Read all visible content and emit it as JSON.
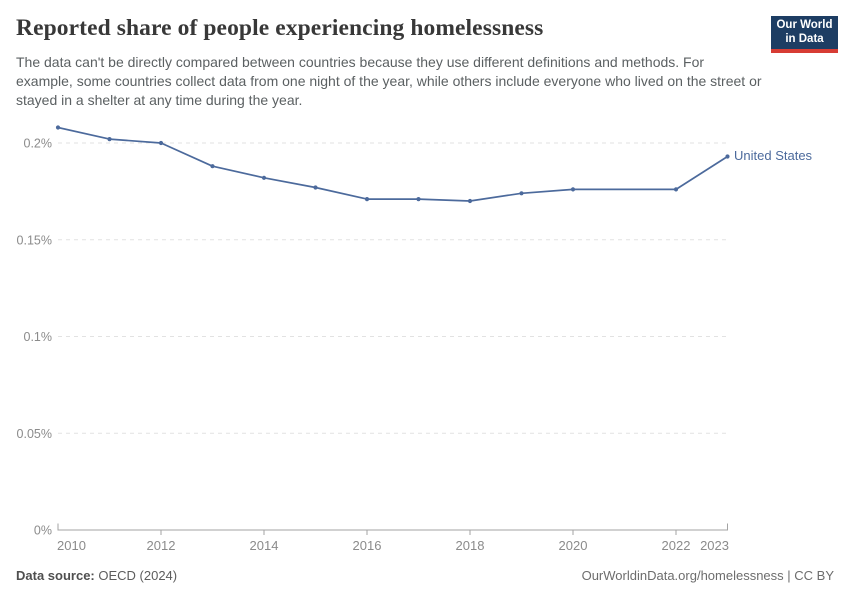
{
  "header": {
    "title": "Reported share of people experiencing homelessness",
    "subtitle": "The data can't be directly compared between countries because they use different definitions and methods. For example, some countries collect data from one night of the year, while others include everyone who lived on the street or stayed in a shelter at any time during the year."
  },
  "logo": {
    "line1": "Our World",
    "line2": "in Data",
    "bg_color": "#1d3d63",
    "accent_color": "#d73c34"
  },
  "chart_data": {
    "type": "line",
    "title": "Reported share of people experiencing homelessness",
    "xlabel": "",
    "ylabel": "",
    "unit": "%",
    "xlim": [
      2010,
      2023
    ],
    "ylim": [
      0,
      0.2
    ],
    "grid": "horizontal-dashed",
    "legend_position": "end-of-line",
    "x": [
      2010,
      2011,
      2012,
      2013,
      2014,
      2015,
      2016,
      2017,
      2018,
      2019,
      2020,
      2022,
      2023
    ],
    "series": [
      {
        "name": "United States",
        "color": "#4C6A9C",
        "values": [
          0.208,
          0.202,
          0.2,
          0.188,
          0.182,
          0.177,
          0.171,
          0.171,
          0.17,
          0.174,
          0.176,
          0.176,
          0.193
        ]
      }
    ],
    "y_ticks": [
      {
        "v": 0,
        "label": "0%"
      },
      {
        "v": 0.05,
        "label": "0.05%"
      },
      {
        "v": 0.1,
        "label": "0.1%"
      },
      {
        "v": 0.15,
        "label": "0.15%"
      },
      {
        "v": 0.2,
        "label": "0.2%"
      }
    ],
    "x_ticks": [
      {
        "v": 2010,
        "label": "2010",
        "align": "start"
      },
      {
        "v": 2012,
        "label": "2012"
      },
      {
        "v": 2014,
        "label": "2014"
      },
      {
        "v": 2016,
        "label": "2016"
      },
      {
        "v": 2018,
        "label": "2018"
      },
      {
        "v": 2020,
        "label": "2020"
      },
      {
        "v": 2022,
        "label": "2022"
      },
      {
        "v": 2023,
        "label": "2023",
        "align": "end"
      }
    ],
    "colors": {
      "gridline": "#e2e2e2",
      "axis": "#a3a3a3",
      "tick_label": "#8b8b8b"
    }
  },
  "footer": {
    "source_label": "Data source:",
    "source_value": " OECD (2024)",
    "credit": "OurWorldinData.org/homelessness | CC BY"
  }
}
